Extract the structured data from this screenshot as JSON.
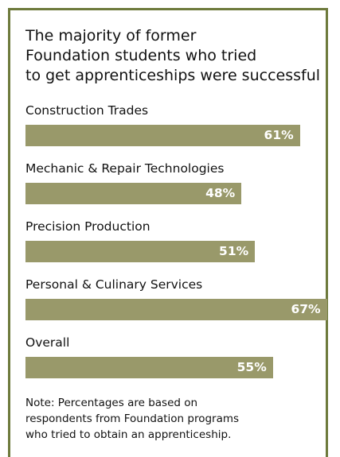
{
  "chart_data": {
    "type": "bar",
    "title": [
      "The majority of former",
      "Foundation students who tried",
      "to get apprenticeships were successful"
    ],
    "categories": [
      "Construction Trades",
      "Mechanic & Repair Technologies",
      "Precision Production",
      "Personal & Culinary Services",
      "Overall"
    ],
    "values": [
      61,
      48,
      51,
      67,
      55
    ],
    "value_labels": [
      "61%",
      "48%",
      "51%",
      "67%",
      "55%"
    ],
    "color": "#99996a",
    "note": [
      "Note: Percentages are based on",
      "respondents from Foundation programs",
      "who tried to obtain an apprenticeship."
    ]
  }
}
